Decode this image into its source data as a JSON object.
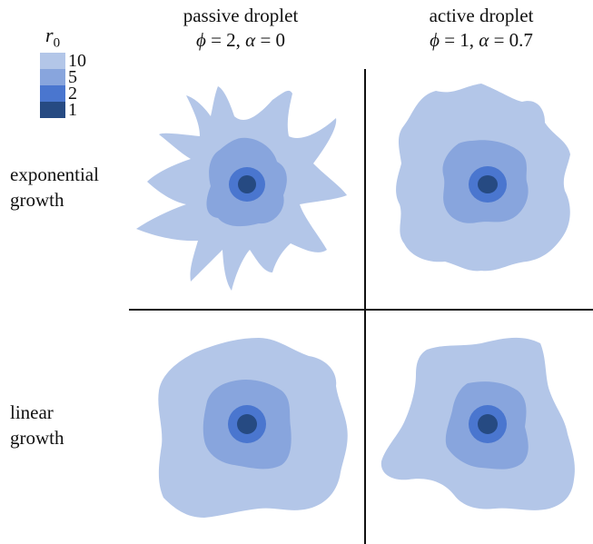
{
  "columns": [
    {
      "title": "passive droplet",
      "params": {
        "phi": "2",
        "alpha": "0"
      }
    },
    {
      "title": "active droplet",
      "params": {
        "phi": "1",
        "alpha": "0.7"
      }
    }
  ],
  "rows": [
    {
      "line1": "exponential",
      "line2": "growth"
    },
    {
      "line1": "linear",
      "line2": "growth"
    }
  ],
  "legend": {
    "title": "r",
    "subscript": "0",
    "levels": [
      {
        "label": "10",
        "color": "#b3c6e8"
      },
      {
        "label": "5",
        "color": "#88a5dd"
      },
      {
        "label": "2",
        "color": "#4a76cf"
      },
      {
        "label": "1",
        "color": "#264a82"
      }
    ]
  }
}
